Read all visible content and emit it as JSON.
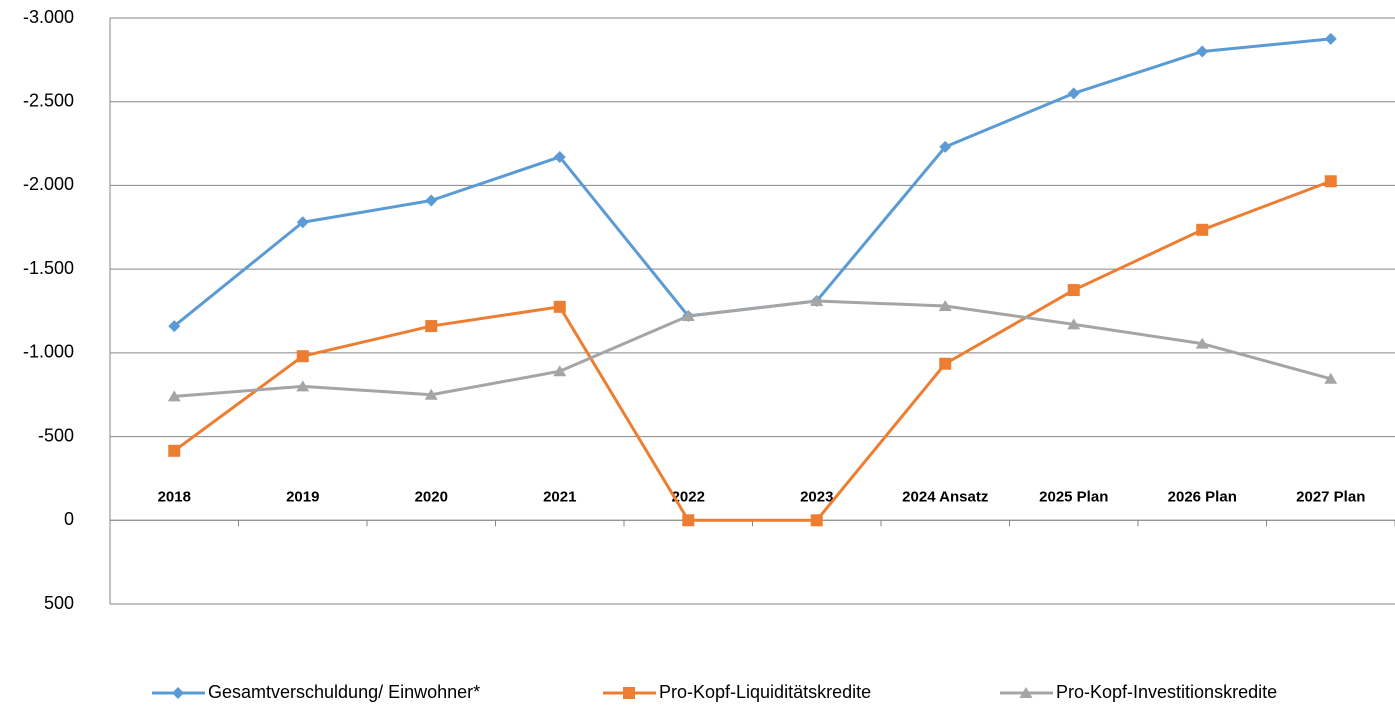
{
  "chart_data": {
    "type": "line",
    "categories": [
      "2018",
      "2019",
      "2020",
      "2021",
      "2022",
      "2023",
      "2024 Ansatz",
      "2025 Plan",
      "2026 Plan",
      "2027 Plan"
    ],
    "series": [
      {
        "name": "Gesamtverschuldung/ Einwohner*",
        "color": "#5b9bd5",
        "marker": "diamond",
        "values": [
          -1160,
          -1780,
          -1910,
          -2170,
          -1220,
          -1310,
          -2230,
          -2550,
          -2800,
          -2875
        ]
      },
      {
        "name": "Pro-Kopf-Liquiditätskredite",
        "color": "#ed7d31",
        "marker": "square",
        "values": [
          -415,
          -980,
          -1160,
          -1275,
          0,
          0,
          -935,
          -1375,
          -1735,
          -2025
        ]
      },
      {
        "name": "Pro-Kopf-Investitionskredite",
        "color": "#a5a5a5",
        "marker": "triangle",
        "values": [
          -740,
          -800,
          -750,
          -890,
          -1220,
          -1310,
          -1280,
          -1170,
          -1055,
          -845
        ]
      }
    ],
    "ylim": [
      -3000,
      500
    ],
    "y_reversed": true,
    "yticks": [
      {
        "value": -3000,
        "label": "-3.000"
      },
      {
        "value": -2500,
        "label": "-2.500"
      },
      {
        "value": -2000,
        "label": "-2.000"
      },
      {
        "value": -1500,
        "label": "-1.500"
      },
      {
        "value": -1000,
        "label": "-1.000"
      },
      -500,
      0,
      500
    ],
    "grid": true,
    "legend": "bottom"
  }
}
